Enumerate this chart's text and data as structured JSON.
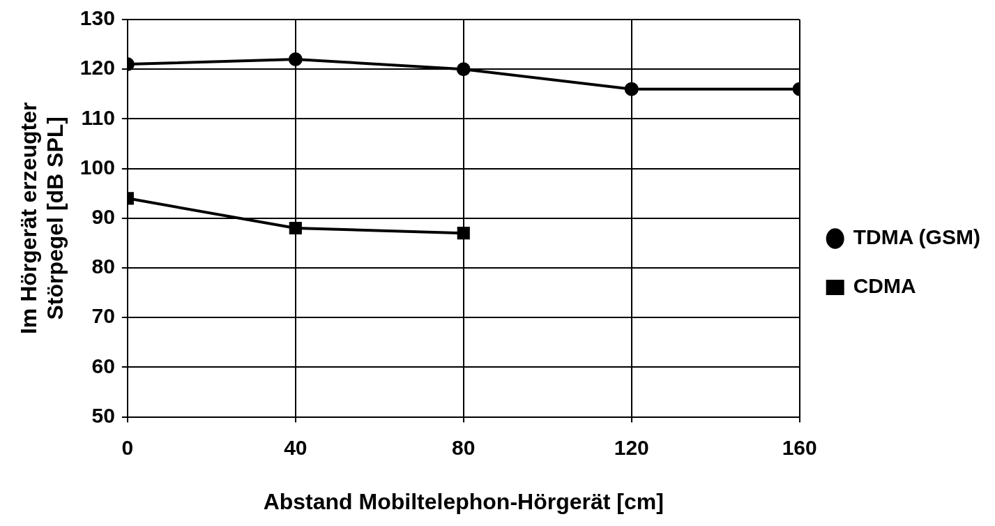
{
  "chart_data": {
    "type": "line",
    "xlabel": "Abstand Mobiltelephon-Hörgerät [cm]",
    "ylabel": "Im Hörgerät erzeugter\nStörpegel [dB SPL]",
    "xlim": [
      0,
      160
    ],
    "xticks": [
      0,
      40,
      80,
      120,
      160
    ],
    "ylim": [
      50,
      130
    ],
    "yticks": [
      50,
      60,
      70,
      80,
      90,
      100,
      110,
      120,
      130
    ],
    "grid": true,
    "legend": "right",
    "line_style": "solid",
    "series": [
      {
        "name": "TDMA (GSM)",
        "color": "#000000",
        "marker": "circle",
        "x": [
          0,
          40,
          80,
          120,
          160
        ],
        "values": [
          121,
          122,
          120,
          116,
          116
        ]
      },
      {
        "name": "CDMA",
        "color": "#000000",
        "marker": "square",
        "x": [
          0,
          40,
          80
        ],
        "values": [
          94,
          88,
          87
        ]
      }
    ]
  }
}
